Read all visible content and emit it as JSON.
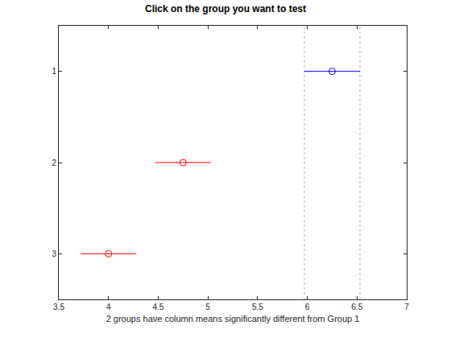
{
  "chart_data": {
    "type": "scatter",
    "title": "Click on the group you want to test",
    "x_label": "2 groups have column means significantly different from Group 1",
    "y": [
      1,
      2,
      3
    ],
    "values": [
      6.25,
      4.75,
      4.0
    ],
    "lower": [
      5.97,
      4.47,
      3.72
    ],
    "upper": [
      6.53,
      5.03,
      4.28
    ],
    "colors": [
      "#0000ff",
      "#ff0000",
      "#ff0000"
    ],
    "marker": "circle-open",
    "orientation": "horizontal",
    "reference_lines": [
      5.97,
      6.53
    ],
    "xlim": [
      3.5,
      7
    ],
    "xticks": [
      3.5,
      4,
      4.5,
      5,
      5.5,
      6,
      6.5,
      7
    ],
    "ylim": [
      3.5,
      0.5
    ],
    "yticks": [
      1,
      2,
      3
    ],
    "grid": false
  }
}
